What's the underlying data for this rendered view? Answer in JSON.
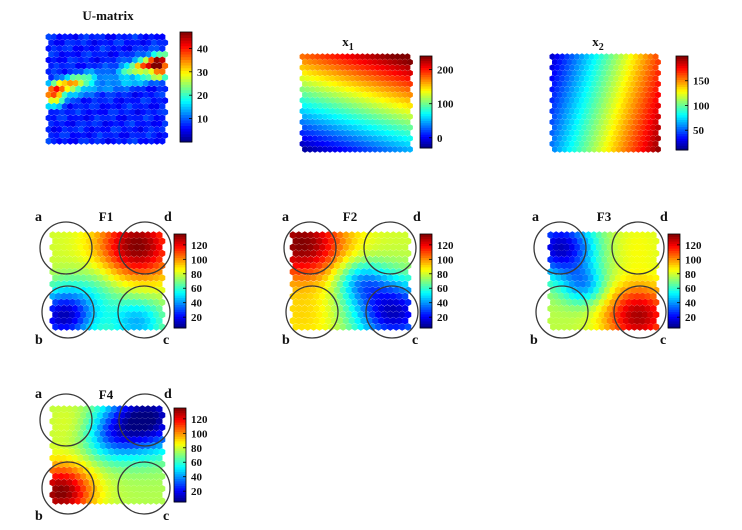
{
  "figure": {
    "jet_colormap": [
      "#00007f",
      "#0000ff",
      "#007fff",
      "#00ffff",
      "#7fff7f",
      "#ffff00",
      "#ff7f00",
      "#ff0000",
      "#7f0000"
    ]
  },
  "chart_data": [
    {
      "id": "umatrix",
      "type": "heatmap",
      "title": "U-matrix",
      "pattern": "umatrix",
      "colorbar": {
        "min": 0,
        "max": 47,
        "ticks": [
          10,
          20,
          30,
          40
        ],
        "tick_labels": [
          "10",
          "20",
          "30",
          "40"
        ]
      }
    },
    {
      "id": "x1",
      "type": "heatmap",
      "title": "x",
      "title_sub": "1",
      "pattern": "x1",
      "colorbar": {
        "min": -30,
        "max": 240,
        "ticks": [
          0,
          100,
          200
        ],
        "tick_labels": [
          "0",
          "100",
          "200"
        ]
      }
    },
    {
      "id": "x2",
      "type": "heatmap",
      "title": "x",
      "title_sub": "2",
      "pattern": "x2",
      "colorbar": {
        "min": 10,
        "max": 200,
        "ticks": [
          50,
          100,
          150
        ],
        "tick_labels": [
          "50",
          "100",
          "150"
        ]
      }
    },
    {
      "id": "f1",
      "type": "heatmap",
      "title": "F1",
      "pattern": "f1",
      "colorbar": {
        "min": 5,
        "max": 135,
        "ticks": [
          20,
          40,
          60,
          80,
          100,
          120
        ],
        "tick_labels": [
          "20",
          "40",
          "60",
          "80",
          "100",
          "120"
        ]
      },
      "corners": {
        "a": "a",
        "b": "b",
        "c": "c",
        "d": "d"
      }
    },
    {
      "id": "f2",
      "type": "heatmap",
      "title": "F2",
      "pattern": "f2",
      "colorbar": {
        "min": 5,
        "max": 135,
        "ticks": [
          20,
          40,
          60,
          80,
          100,
          120
        ],
        "tick_labels": [
          "20",
          "40",
          "60",
          "80",
          "100",
          "120"
        ]
      },
      "corners": {
        "a": "a",
        "b": "b",
        "c": "c",
        "d": "d"
      }
    },
    {
      "id": "f3",
      "type": "heatmap",
      "title": "F3",
      "pattern": "f3",
      "colorbar": {
        "min": 5,
        "max": 135,
        "ticks": [
          20,
          40,
          60,
          80,
          100,
          120
        ],
        "tick_labels": [
          "20",
          "40",
          "60",
          "80",
          "100",
          "120"
        ]
      },
      "corners": {
        "a": "a",
        "b": "b",
        "c": "c",
        "d": "d"
      }
    },
    {
      "id": "f4",
      "type": "heatmap",
      "title": "F4",
      "pattern": "f4",
      "colorbar": {
        "min": 5,
        "max": 135,
        "ticks": [
          20,
          40,
          60,
          80,
          100,
          120
        ],
        "tick_labels": [
          "20",
          "40",
          "60",
          "80",
          "100",
          "120"
        ]
      },
      "corners": {
        "a": "a",
        "b": "b",
        "c": "c",
        "d": "d"
      }
    }
  ]
}
